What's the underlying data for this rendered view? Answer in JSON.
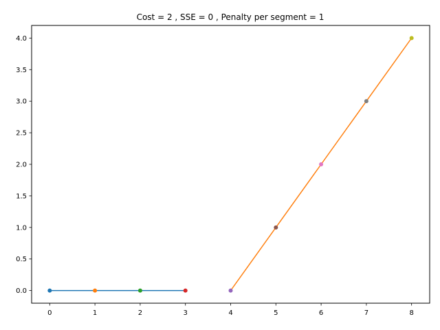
{
  "chart_data": {
    "type": "line",
    "title": "Cost = 2 , SSE = 0 , Penalty per segment = 1",
    "xlabel": "",
    "ylabel": "",
    "xlim": [
      -0.4,
      8.4
    ],
    "ylim": [
      -0.2,
      4.2
    ],
    "x_ticks": [
      0,
      1,
      2,
      3,
      4,
      5,
      6,
      7,
      8
    ],
    "x_tick_labels": [
      "0",
      "1",
      "2",
      "3",
      "4",
      "5",
      "6",
      "7",
      "8"
    ],
    "y_ticks": [
      0,
      0.5,
      1,
      1.5,
      2,
      2.5,
      3,
      3.5,
      4
    ],
    "y_tick_labels": [
      "0.0",
      "0.5",
      "1.0",
      "1.5",
      "2.0",
      "2.5",
      "3.0",
      "3.5",
      "4.0"
    ],
    "grid": false,
    "segments": [
      {
        "color": "#1f77b4",
        "x": [
          0,
          1,
          2,
          3
        ],
        "y": [
          0,
          0,
          0,
          0
        ]
      },
      {
        "color": "#ff7f0e",
        "x": [
          4,
          5,
          6,
          7,
          8
        ],
        "y": [
          0,
          1,
          2,
          3,
          4
        ]
      }
    ],
    "points": [
      {
        "x": 0,
        "y": 0,
        "color": "#1f77b4"
      },
      {
        "x": 1,
        "y": 0,
        "color": "#ff7f0e"
      },
      {
        "x": 2,
        "y": 0,
        "color": "#2ca02c"
      },
      {
        "x": 3,
        "y": 0,
        "color": "#d62728"
      },
      {
        "x": 4,
        "y": 0,
        "color": "#9467bd"
      },
      {
        "x": 5,
        "y": 1,
        "color": "#8c564b"
      },
      {
        "x": 6,
        "y": 2,
        "color": "#e377c2"
      },
      {
        "x": 7,
        "y": 3,
        "color": "#7f7f7f"
      },
      {
        "x": 8,
        "y": 4,
        "color": "#bcbd22"
      }
    ]
  }
}
